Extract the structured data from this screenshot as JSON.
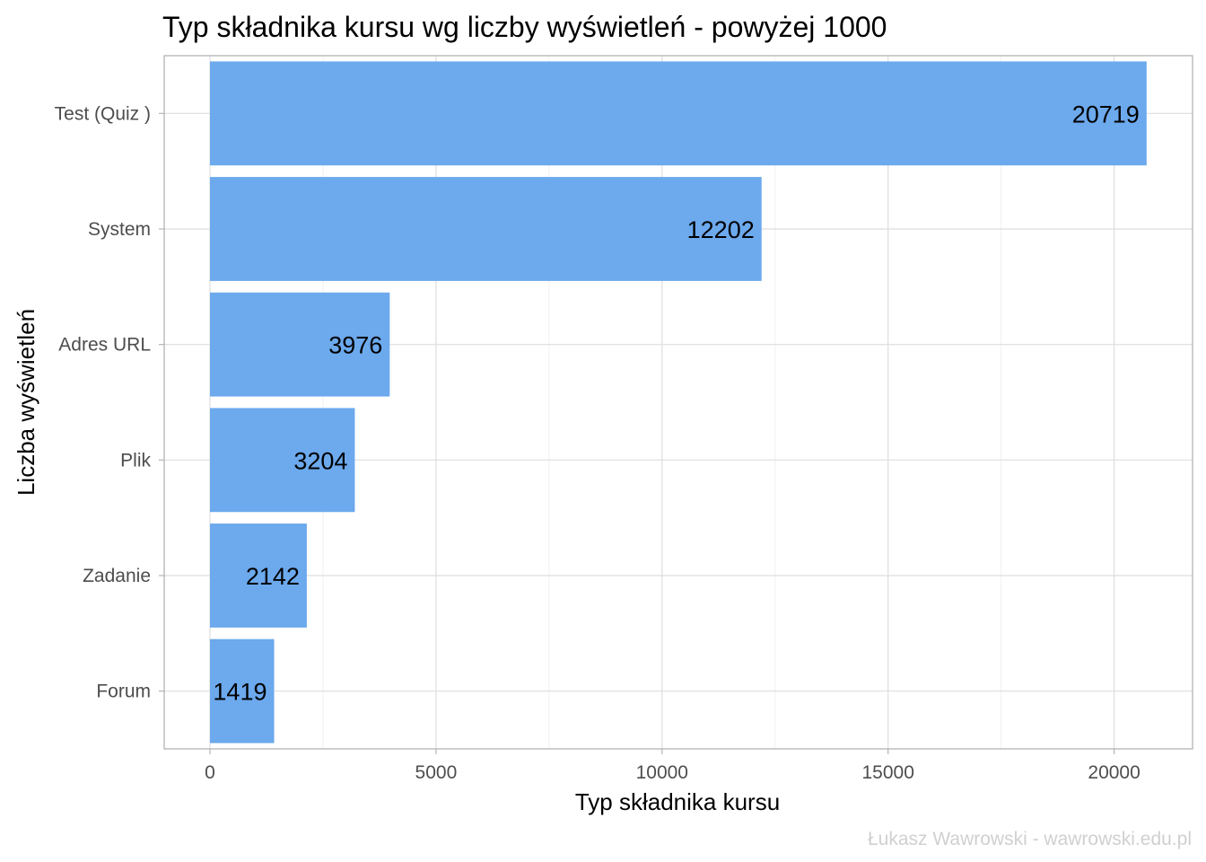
{
  "chart_data": {
    "type": "bar",
    "orientation": "horizontal",
    "title": "Typ składnika kursu wg liczby wyświetleń - powyżej 1000",
    "xlabel": "Typ składnika kursu",
    "ylabel": "Liczba wyświetleń",
    "categories": [
      "Test (Quiz )",
      "System",
      "Adres URL",
      "Plik",
      "Zadanie",
      "Forum"
    ],
    "values": [
      20719,
      12202,
      3976,
      3204,
      2142,
      1419
    ],
    "value_labels": [
      "20719",
      "12202",
      "3976",
      "3204",
      "2142",
      "1419"
    ],
    "xlim": [
      -2000,
      21800
    ],
    "x_ticks": [
      0,
      5000,
      10000,
      15000,
      20000
    ],
    "x_tick_labels": [
      "0",
      "5000",
      "10000",
      "15000",
      "20000"
    ],
    "grid": true,
    "bar_color": "#6ca9ed",
    "caption": "Łukasz Wawrowski - wawrowski.edu.pl"
  }
}
